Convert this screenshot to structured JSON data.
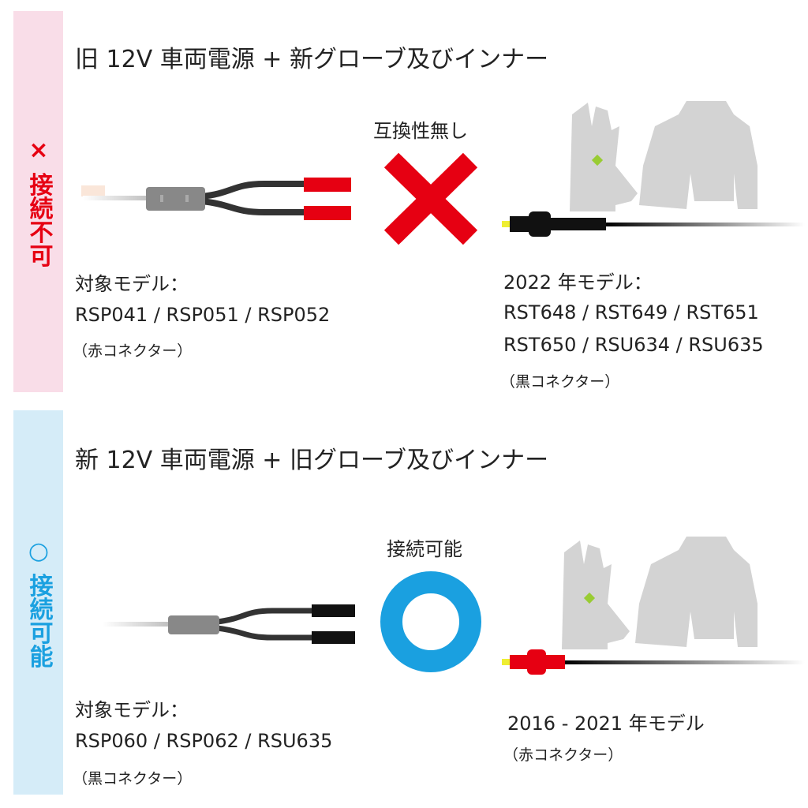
{
  "incompatible": {
    "side_label": "× 接続不可",
    "title": "旧 12V 車両電源 + 新グローブ及びインナー",
    "status": "互換性無し",
    "left": {
      "heading": "対象モデル：",
      "models": "RSP041 / RSP051 / RSP052",
      "connector": "（赤コネクター）"
    },
    "right": {
      "heading": "2022 年モデル：",
      "models_1": "RST648 / RST649 / RST651",
      "models_2": "RST650 / RSU634 / RSU635",
      "connector": "（黒コネクター）"
    },
    "accent": "#e60012",
    "panel_color": "#f9dde8"
  },
  "compatible": {
    "side_label": "○ 接続可能",
    "title": "新 12V 車両電源 + 旧グローブ及びインナー",
    "status": "接続可能",
    "left": {
      "heading": "対象モデル：",
      "models": "RSP060 / RSP062 / RSU635",
      "connector": "（黒コネクター）"
    },
    "right": {
      "heading": "2016 - 2021 年モデル",
      "connector": "（赤コネクター）"
    },
    "accent": "#1aa0e0",
    "panel_color": "#d5ecf8"
  }
}
